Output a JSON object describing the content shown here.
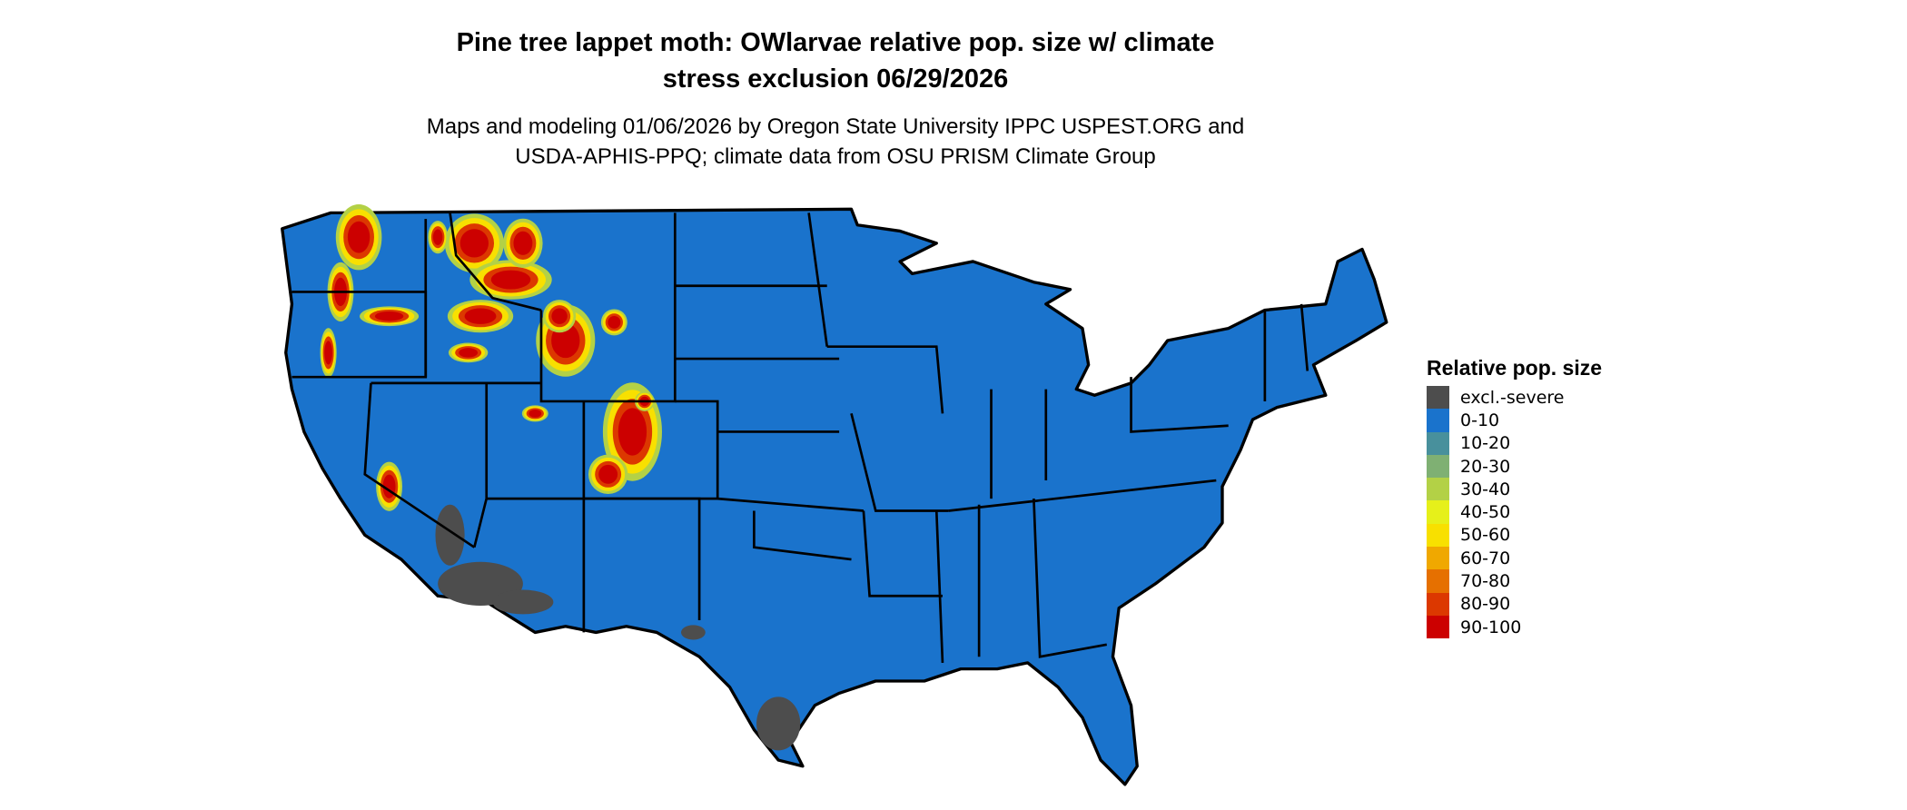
{
  "title": {
    "line1": "Pine tree lappet moth: OWlarvae relative pop. size w/ climate",
    "line2": "stress exclusion 06/29/2026"
  },
  "subtitle": {
    "line1": "Maps and modeling 01/06/2026 by Oregon State University IPPC USPEST.ORG and",
    "line2": "USDA-APHIS-PPQ; climate data from OSU PRISM Climate Group"
  },
  "map": {
    "region": "contiguous United States",
    "base_color": "#1a73cc",
    "excluded_color": "#4d4d4d",
    "border_color": "#000000"
  },
  "legend": {
    "title": "Relative pop. size",
    "items": [
      {
        "label": "excl.-severe",
        "color": "#4d4d4d"
      },
      {
        "label": "0-10",
        "color": "#1a73cc"
      },
      {
        "label": "10-20",
        "color": "#48909c"
      },
      {
        "label": "20-30",
        "color": "#7fb073"
      },
      {
        "label": "30-40",
        "color": "#b3d146"
      },
      {
        "label": "40-50",
        "color": "#e6f01a"
      },
      {
        "label": "50-60",
        "color": "#f8e000"
      },
      {
        "label": "60-70",
        "color": "#f0a800"
      },
      {
        "label": "70-80",
        "color": "#e67000"
      },
      {
        "label": "80-90",
        "color": "#dc3800"
      },
      {
        "label": "90-100",
        "color": "#cc0000"
      }
    ]
  }
}
